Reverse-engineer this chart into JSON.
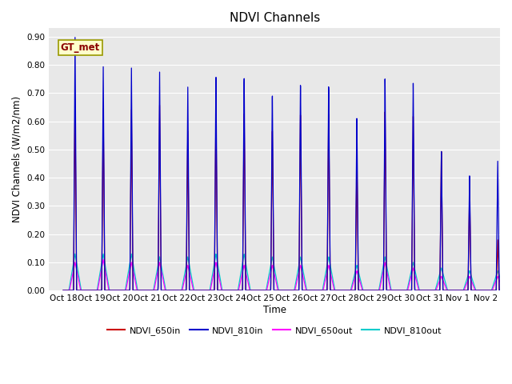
{
  "title": "NDVI Channels",
  "xlabel": "Time",
  "ylabel": "NDVI Channels (W/m2/nm)",
  "ylim": [
    0.0,
    0.93
  ],
  "yticks": [
    0.0,
    0.1,
    0.2,
    0.3,
    0.4,
    0.5,
    0.6,
    0.7,
    0.8,
    0.9
  ],
  "colors": {
    "NDVI_650in": "#cc0000",
    "NDVI_810in": "#0000cc",
    "NDVI_650out": "#ff00ff",
    "NDVI_810out": "#00cccc"
  },
  "annotation_text": "GT_met",
  "background_color": "#ffffff",
  "axes_bg": "#e8e8e8",
  "grid_color": "#ffffff",
  "num_days": 16,
  "peak_810in": [
    0.9,
    0.8,
    0.8,
    0.79,
    0.74,
    0.78,
    0.78,
    0.72,
    0.76,
    0.75,
    0.63,
    0.77,
    0.75,
    0.5,
    0.41,
    0.46
  ],
  "peak_650in": [
    0.68,
    0.65,
    0.65,
    0.67,
    0.58,
    0.65,
    0.65,
    0.59,
    0.65,
    0.65,
    0.47,
    0.65,
    0.63,
    0.5,
    0.36,
    0.18
  ],
  "peak_650out": [
    0.1,
    0.11,
    0.1,
    0.1,
    0.09,
    0.1,
    0.09,
    0.09,
    0.09,
    0.09,
    0.07,
    0.1,
    0.08,
    0.05,
    0.05,
    0.05
  ],
  "peak_810out": [
    0.13,
    0.13,
    0.13,
    0.12,
    0.12,
    0.13,
    0.13,
    0.12,
    0.12,
    0.12,
    0.09,
    0.12,
    0.1,
    0.08,
    0.07,
    0.07
  ],
  "x_tick_labels": [
    "Oct 18",
    "Oct 19",
    "Oct 20",
    "Oct 21",
    "Oct 22",
    "Oct 23",
    "Oct 24",
    "Oct 25",
    "Oct 26",
    "Oct 27",
    "Oct 28",
    "Oct 29",
    "Oct 30",
    "Oct 31",
    "Nov 1",
    "Nov 2"
  ],
  "title_fontsize": 11,
  "tick_fontsize": 7.5,
  "label_fontsize": 8.5,
  "legend_fontsize": 8
}
